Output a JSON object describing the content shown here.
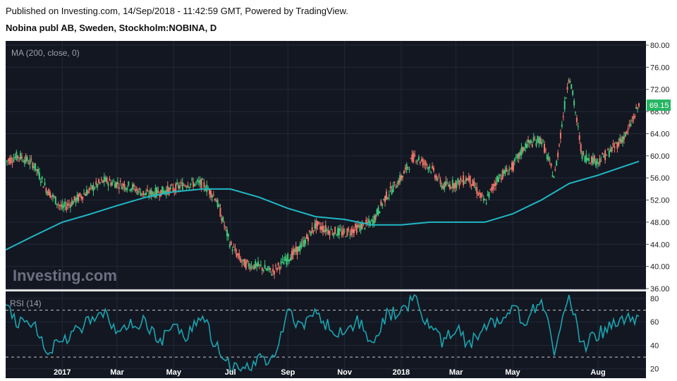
{
  "header": {
    "published": "Published on Investing.com, 14/Sep/2018 - 11:42:59 GMT, Powered by TradingView.",
    "title": "Nobina publ AB, Sweden, Stockholm:NOBINA, D"
  },
  "main_panel": {
    "indicator_label": "MA (200, close, 0)",
    "watermark": "Investing.com",
    "last_price_badge": "69.15"
  },
  "rsi_panel": {
    "label": "RSI (14)"
  },
  "colors": {
    "background": "#131722",
    "up": "#26a69a",
    "up_candle": "#3cc87a",
    "down_candle": "#f0776b",
    "ma_line": "#1fb8c4",
    "rsi_line": "#1aa5b0",
    "badge": "#26b562"
  },
  "chart_data": [
    {
      "type": "candlestick",
      "series": [
        {
          "name": "NOBINA close (approx.)",
          "x": [
            "2016-11-01",
            "2016-11-15",
            "2016-12-01",
            "2016-12-15",
            "2017-01-01",
            "2017-01-15",
            "2017-02-01",
            "2017-02-15",
            "2017-03-01",
            "2017-03-15",
            "2017-04-01",
            "2017-04-15",
            "2017-05-01",
            "2017-05-15",
            "2017-06-01",
            "2017-06-15",
            "2017-07-01",
            "2017-07-15",
            "2017-08-01",
            "2017-08-15",
            "2017-09-01",
            "2017-09-15",
            "2017-10-01",
            "2017-10-15",
            "2017-11-01",
            "2017-11-15",
            "2017-12-01",
            "2017-12-15",
            "2018-01-01",
            "2018-01-15",
            "2018-02-01",
            "2018-02-15",
            "2018-03-01",
            "2018-03-15",
            "2018-04-01",
            "2018-04-15",
            "2018-05-01",
            "2018-05-15",
            "2018-06-01",
            "2018-06-15",
            "2018-07-01",
            "2018-07-15",
            "2018-08-01",
            "2018-08-15",
            "2018-09-01",
            "2018-09-14"
          ],
          "values": [
            59.0,
            60.0,
            58.5,
            54.0,
            50.5,
            52.0,
            54.0,
            55.5,
            55.0,
            54.5,
            53.0,
            53.5,
            54.0,
            55.0,
            55.0,
            52.5,
            44.0,
            40.5,
            40.0,
            39.0,
            41.5,
            43.5,
            47.5,
            46.5,
            46.0,
            47.0,
            48.0,
            52.5,
            56.0,
            60.0,
            58.0,
            54.5,
            55.0,
            56.0,
            51.5,
            56.0,
            58.0,
            62.0,
            63.0,
            56.0,
            75.0,
            60.0,
            59.0,
            61.0,
            64.0,
            69.15
          ]
        },
        {
          "name": "MA (200, close, 0)",
          "x": [
            "2016-11-01",
            "2016-12-01",
            "2017-01-01",
            "2017-02-01",
            "2017-03-01",
            "2017-04-01",
            "2017-05-01",
            "2017-06-01",
            "2017-07-01",
            "2017-08-01",
            "2017-09-01",
            "2017-10-01",
            "2017-11-01",
            "2017-12-01",
            "2018-01-01",
            "2018-02-01",
            "2018-03-01",
            "2018-04-01",
            "2018-05-01",
            "2018-06-01",
            "2018-07-01",
            "2018-08-01",
            "2018-09-14"
          ],
          "values": [
            43.0,
            45.5,
            48.0,
            49.5,
            51.0,
            52.5,
            53.5,
            54.0,
            54.0,
            52.5,
            50.5,
            49.0,
            48.5,
            47.5,
            47.5,
            48.0,
            48.0,
            48.0,
            49.5,
            52.0,
            55.0,
            56.5,
            59.0
          ]
        }
      ],
      "ylim": [
        36,
        80
      ],
      "yticks": [
        "36.00",
        "40.00",
        "44.00",
        "48.00",
        "52.00",
        "56.00",
        "60.00",
        "64.00",
        "68.00",
        "72.00",
        "76.00",
        "80.00"
      ],
      "xticks": [
        "2017",
        "Mar",
        "May",
        "Jul",
        "Sep",
        "Nov",
        "2018",
        "Mar",
        "May",
        "Aug"
      ],
      "grid": true
    },
    {
      "type": "line",
      "series": [
        {
          "name": "RSI (14)",
          "x": [
            "2016-11-01",
            "2016-11-15",
            "2016-12-01",
            "2016-12-15",
            "2017-01-01",
            "2017-01-15",
            "2017-02-01",
            "2017-02-15",
            "2017-03-01",
            "2017-03-15",
            "2017-04-01",
            "2017-04-15",
            "2017-05-01",
            "2017-05-15",
            "2017-06-01",
            "2017-06-15",
            "2017-07-01",
            "2017-07-15",
            "2017-08-01",
            "2017-08-15",
            "2017-09-01",
            "2017-09-15",
            "2017-10-01",
            "2017-10-15",
            "2017-11-01",
            "2017-11-15",
            "2017-12-01",
            "2017-12-15",
            "2018-01-01",
            "2018-01-15",
            "2018-02-01",
            "2018-02-15",
            "2018-03-01",
            "2018-03-15",
            "2018-04-01",
            "2018-04-15",
            "2018-05-01",
            "2018-05-15",
            "2018-06-01",
            "2018-06-15",
            "2018-07-01",
            "2018-07-15",
            "2018-08-01",
            "2018-08-15",
            "2018-09-01",
            "2018-09-14"
          ],
          "values": [
            72,
            58,
            60,
            35,
            42,
            52,
            62,
            70,
            50,
            58,
            60,
            42,
            55,
            48,
            65,
            40,
            22,
            18,
            30,
            25,
            68,
            55,
            70,
            55,
            50,
            62,
            42,
            65,
            70,
            80,
            55,
            42,
            55,
            40,
            58,
            62,
            72,
            60,
            80,
            35,
            82,
            38,
            50,
            55,
            65,
            61
          ]
        }
      ],
      "ylim": [
        12,
        86
      ],
      "yticks": [
        "20",
        "40",
        "60",
        "80"
      ],
      "levels": [
        70,
        30
      ],
      "grid": true
    }
  ]
}
